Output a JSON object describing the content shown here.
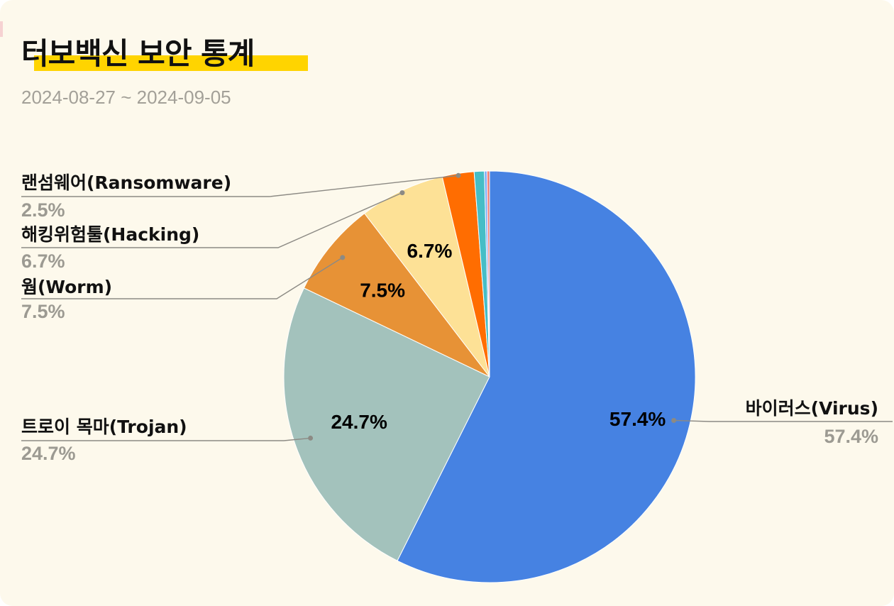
{
  "header": {
    "title": "터보백신 보안 통계",
    "subtitle": "2024-08-27 ~ 2024-09-05"
  },
  "colors": {
    "background": "#fdf9ec",
    "title_highlight": "#ffd400"
  },
  "chart_data": {
    "type": "pie",
    "title": "터보백신 보안 통계",
    "subtitle": "2024-08-27 ~ 2024-09-05",
    "slices": [
      {
        "name": "바이러스(Virus)",
        "value": 57.4,
        "pct_label": "57.4%",
        "color": "#4682e2",
        "show_inside": true,
        "callout_label": "57.4%"
      },
      {
        "name": "트로이 목마(Trojan)",
        "value": 24.7,
        "pct_label": "24.7%",
        "color": "#a3c2bc",
        "show_inside": true,
        "callout_label": "24.7%"
      },
      {
        "name": "웜(Worm)",
        "value": 7.5,
        "pct_label": "7.5%",
        "color": "#e79236",
        "show_inside": true,
        "callout_label": "7.5%"
      },
      {
        "name": "해킹위험툴(Hacking)",
        "value": 6.7,
        "pct_label": "6.7%",
        "color": "#fde196",
        "show_inside": true,
        "callout_label": "6.7%"
      },
      {
        "name": "랜섬웨어(Ransomware)",
        "value": 2.5,
        "pct_label": "2.5%",
        "color": "#ff6d01",
        "show_inside": false,
        "callout_label": "2.5%"
      },
      {
        "name": "",
        "value": 0.8,
        "pct_label": "",
        "color": "#46bdc6",
        "show_inside": false,
        "callout_label": ""
      },
      {
        "name": "",
        "value": 0.2,
        "pct_label": "",
        "color": "#7baaf7",
        "show_inside": false,
        "callout_label": ""
      },
      {
        "name": "",
        "value": 0.2,
        "pct_label": "",
        "color": "#f07b72",
        "show_inside": false,
        "callout_label": ""
      }
    ],
    "legend": "callouts"
  }
}
